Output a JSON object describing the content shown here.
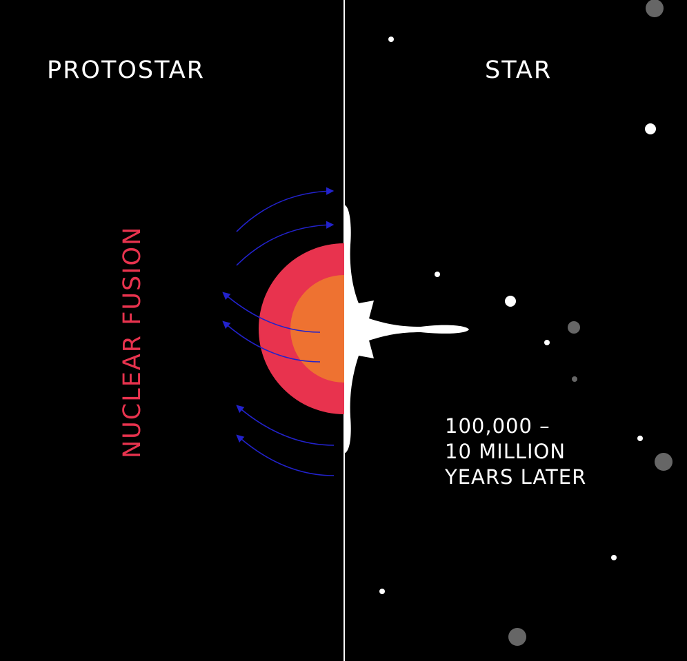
{
  "headings": {
    "left": "PROTOSTAR",
    "right": "STAR"
  },
  "process_label": "NUCLEAR FUSION",
  "time_label": {
    "line1": "100,000 –",
    "line2": "10 MILLION",
    "line3": "YEARS LATER"
  },
  "colors": {
    "background": "#000000",
    "outer_layer": "#e8334e",
    "core": "#ee7231",
    "arrows": "#2222cc",
    "star": "#ffffff",
    "bright_dot": "#ffffff",
    "dim_dot": "#666666",
    "label_accent": "#e8334e"
  }
}
